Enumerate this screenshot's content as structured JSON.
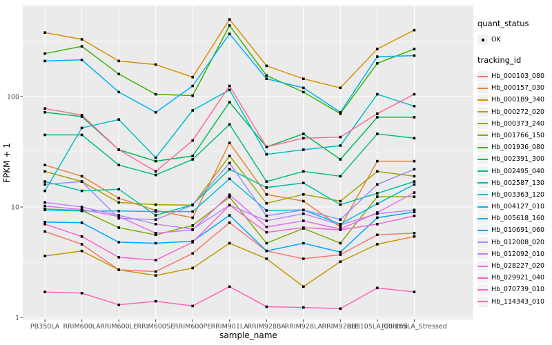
{
  "style": {
    "panel_bg": "#EBEBEB",
    "grid_color": "#FFFFFF",
    "tick_text_color": "#4D4D4D",
    "title_text_color": "#000000",
    "axis_tick_color": "#333333",
    "point_color": "#000000",
    "legend_key_bg": "#F2F2F2"
  },
  "chart_data": {
    "type": "line",
    "title": "",
    "xlabel": "sample_name",
    "ylabel": "FPKM + 1",
    "y_scale": "log10",
    "ylim": [
      1,
      650
    ],
    "grid": "major-and-minor",
    "legend_position": "right",
    "y_ticks": [
      {
        "label": "1",
        "value": 1
      },
      {
        "label": "10",
        "value": 10
      },
      {
        "label": "100",
        "value": 100
      }
    ],
    "y_minor_ticks": [
      3.1623,
      31.623,
      316.23
    ],
    "categories": [
      "PB350LA",
      "RRIM600LA",
      "RRIM600LE",
      "RRIM600SE",
      "RRIM600PE",
      "RRIM901LA",
      "RRIM928BA",
      "RRIM928LA",
      "RRIM928LE",
      "RRII105LA_Control",
      "RRII105LA_Stressed"
    ],
    "legend": {
      "quant_status_title": "quant_status",
      "quant_status_items": [
        {
          "label": "OK",
          "marker": "black-point"
        }
      ],
      "series_title": "tracking_id"
    },
    "series": [
      {
        "name": "Hb_000103_080",
        "color": "#F8766D",
        "values": [
          6.0,
          4.6,
          2.7,
          2.6,
          3.8,
          7.2,
          4.0,
          3.4,
          3.7,
          5.6,
          5.8
        ]
      },
      {
        "name": "Hb_000157_030",
        "color": "#EA8331",
        "values": [
          24,
          19,
          12,
          9.3,
          8.0,
          38,
          13,
          11.3,
          6.6,
          26,
          26
        ]
      },
      {
        "name": "Hb_000189_340",
        "color": "#D89000",
        "values": [
          380,
          330,
          210,
          195,
          150,
          500,
          190,
          145,
          120,
          270,
          400
        ]
      },
      {
        "name": "Hb_000272_020",
        "color": "#C09B00",
        "values": [
          3.6,
          4.0,
          2.7,
          2.4,
          2.8,
          4.7,
          3.4,
          1.9,
          3.2,
          4.6,
          5.4
        ]
      },
      {
        "name": "Hb_000373_240",
        "color": "#A3A500",
        "values": [
          21,
          17,
          11,
          10.5,
          10.4,
          29,
          10.8,
          13,
          11.3,
          21,
          19
        ]
      },
      {
        "name": "Hb_001766_150",
        "color": "#7CAE00",
        "values": [
          9.6,
          9.3,
          6.5,
          5.6,
          6.8,
          12.3,
          4.7,
          6.4,
          4.7,
          12.4,
          12.4
        ]
      },
      {
        "name": "Hb_001936_080",
        "color": "#39B600",
        "values": [
          245,
          285,
          160,
          105,
          102,
          440,
          155,
          110,
          70,
          200,
          270
        ]
      },
      {
        "name": "Hb_002391_300",
        "color": "#00BB4E",
        "values": [
          72,
          66,
          33,
          26,
          29,
          89,
          35,
          46,
          27,
          65,
          65
        ]
      },
      {
        "name": "Hb_002495_040",
        "color": "#00BF7D",
        "values": [
          45,
          45,
          24,
          19.5,
          27,
          56,
          17,
          21,
          19,
          46,
          42
        ]
      },
      {
        "name": "Hb_002587_130",
        "color": "#00C1A3",
        "values": [
          17,
          14,
          14.5,
          8.4,
          10.5,
          22,
          15,
          16.5,
          10.5,
          13.3,
          17
        ]
      },
      {
        "name": "Hb_003363_120",
        "color": "#00BFC4",
        "values": [
          14,
          52,
          62,
          28,
          75,
          115,
          30,
          33,
          36,
          105,
          82
        ]
      },
      {
        "name": "Hb_004127_010",
        "color": "#00BADE",
        "values": [
          9.4,
          9.2,
          9.2,
          9.1,
          9.1,
          18,
          9.3,
          9.4,
          7.0,
          10.7,
          16
        ]
      },
      {
        "name": "Hb_005618_160",
        "color": "#00B0F6",
        "values": [
          210,
          215,
          110,
          72,
          125,
          370,
          145,
          120,
          72,
          230,
          235
        ]
      },
      {
        "name": "Hb_010691_060",
        "color": "#00A5FF",
        "values": [
          7.3,
          7.2,
          4.8,
          4.7,
          4.9,
          8.4,
          4.0,
          4.7,
          3.9,
          8.0,
          9.0
        ]
      },
      {
        "name": "Hb_012008_020",
        "color": "#9590FF",
        "values": [
          16,
          17,
          7.9,
          7.7,
          10.4,
          25,
          8.3,
          9.4,
          7.7,
          16,
          22
        ]
      },
      {
        "name": "Hb_012092_010",
        "color": "#B983FF",
        "values": [
          11,
          10,
          8.4,
          7.0,
          6.3,
          10.4,
          7.5,
          8.7,
          6.9,
          8.7,
          9.4
        ]
      },
      {
        "name": "Hb_028227_020",
        "color": "#E76BF3",
        "values": [
          10.2,
          9.5,
          8.2,
          5.8,
          6.2,
          12.9,
          6.6,
          7.5,
          6.3,
          8.9,
          13.5
        ]
      },
      {
        "name": "Hb_029921_040",
        "color": "#FD61D1",
        "values": [
          7.0,
          5.4,
          3.5,
          3.3,
          4.8,
          10.4,
          5.9,
          6.5,
          6.2,
          7.0,
          8.3
        ]
      },
      {
        "name": "Hb_070739_010",
        "color": "#FF62BC",
        "values": [
          1.7,
          1.66,
          1.3,
          1.4,
          1.27,
          1.9,
          1.25,
          1.23,
          1.2,
          1.85,
          1.7
        ]
      },
      {
        "name": "Hb_114343_010",
        "color": "#FF6A98",
        "values": [
          78,
          68,
          33,
          21,
          40,
          125,
          35,
          42,
          43,
          70,
          105
        ]
      }
    ]
  }
}
